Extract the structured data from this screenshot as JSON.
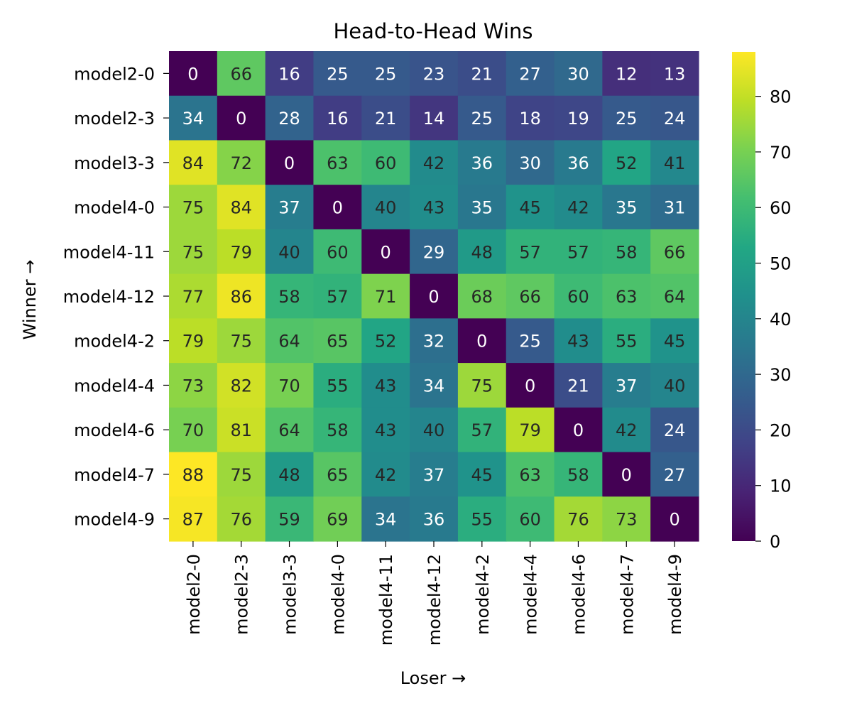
{
  "chart_data": {
    "type": "heatmap",
    "title": "Head-to-Head Wins",
    "xlabel": "Loser →",
    "ylabel": "Winner →",
    "row_labels": [
      "model2-0",
      "model2-3",
      "model3-3",
      "model4-0",
      "model4-11",
      "model4-12",
      "model4-2",
      "model4-4",
      "model4-6",
      "model4-7",
      "model4-9"
    ],
    "col_labels": [
      "model2-0",
      "model2-3",
      "model3-3",
      "model4-0",
      "model4-11",
      "model4-12",
      "model4-2",
      "model4-4",
      "model4-6",
      "model4-7",
      "model4-9"
    ],
    "values": [
      [
        0,
        66,
        16,
        25,
        25,
        23,
        21,
        27,
        30,
        12,
        13
      ],
      [
        34,
        0,
        28,
        16,
        21,
        14,
        25,
        18,
        19,
        25,
        24
      ],
      [
        84,
        72,
        0,
        63,
        60,
        42,
        36,
        30,
        36,
        52,
        41
      ],
      [
        75,
        84,
        37,
        0,
        40,
        43,
        35,
        45,
        42,
        35,
        31
      ],
      [
        75,
        79,
        40,
        60,
        0,
        29,
        48,
        57,
        57,
        58,
        66
      ],
      [
        77,
        86,
        58,
        57,
        71,
        0,
        68,
        66,
        60,
        63,
        64
      ],
      [
        79,
        75,
        64,
        65,
        52,
        32,
        0,
        25,
        43,
        55,
        45
      ],
      [
        73,
        82,
        70,
        55,
        43,
        34,
        75,
        0,
        21,
        37,
        40
      ],
      [
        70,
        81,
        64,
        58,
        43,
        40,
        57,
        79,
        0,
        42,
        24
      ],
      [
        88,
        75,
        48,
        65,
        42,
        37,
        45,
        63,
        58,
        0,
        27
      ],
      [
        87,
        76,
        59,
        69,
        34,
        36,
        55,
        60,
        76,
        73,
        0
      ]
    ],
    "colormap": "viridis",
    "vmin": 0,
    "vmax": 88,
    "colorbar_ticks": [
      0,
      10,
      20,
      30,
      40,
      50,
      60,
      70,
      80
    ],
    "annotations": true
  }
}
